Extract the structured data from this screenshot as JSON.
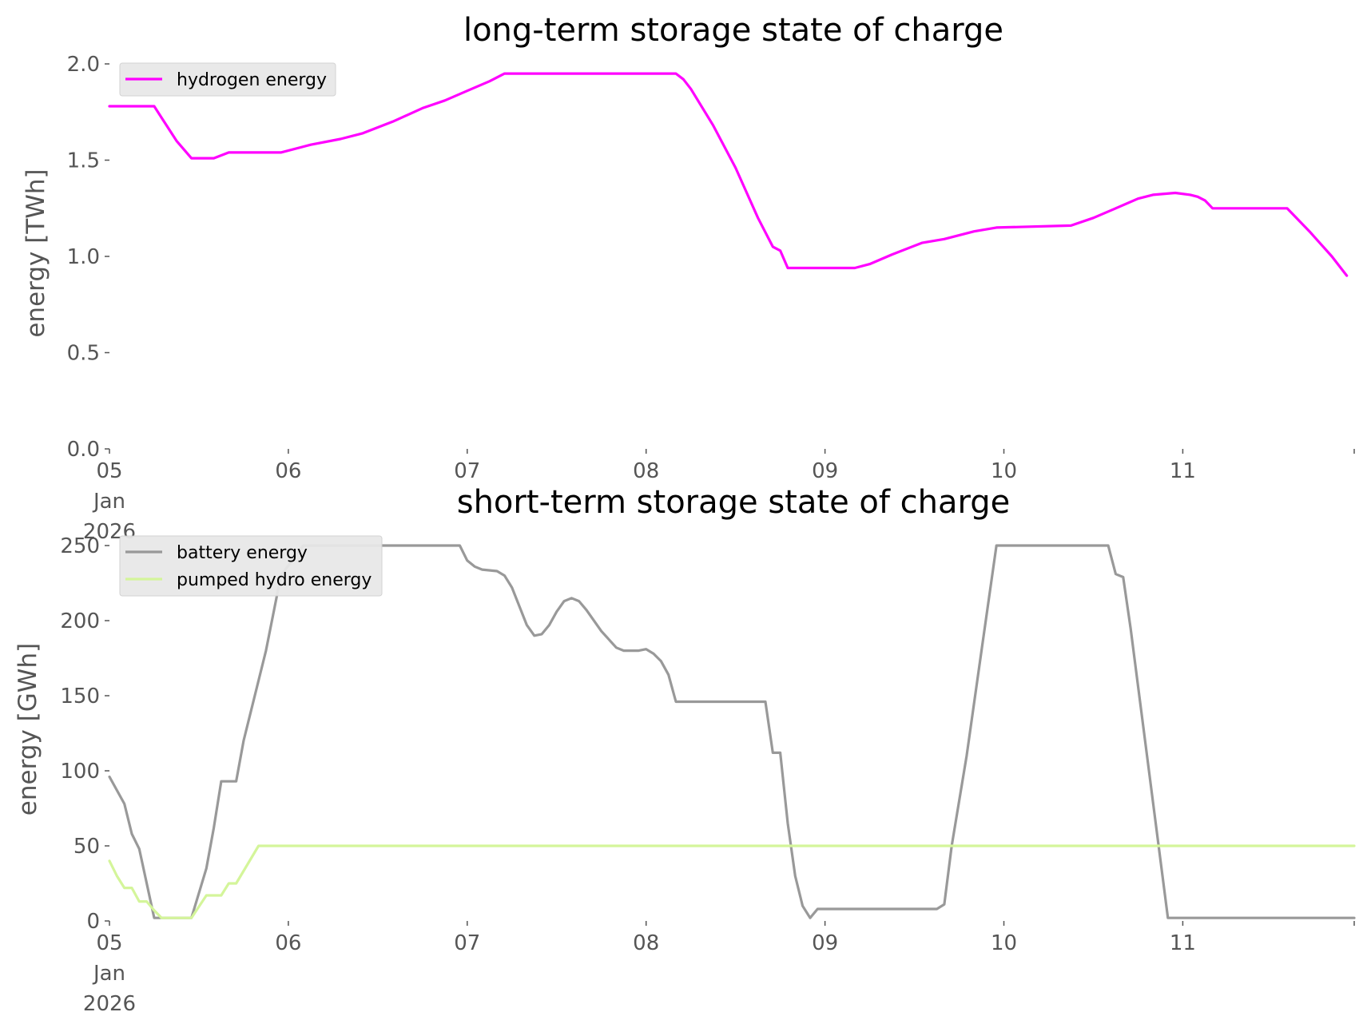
{
  "chart_data": [
    {
      "type": "line",
      "title": "long-term storage state of charge",
      "ylabel": "energy [TWh]",
      "xlabel": "",
      "xlim": [
        "2026-01-05T00:00",
        "2026-01-11T23:00"
      ],
      "ylim": [
        0.0,
        2.0
      ],
      "yticks": [
        "0.0",
        "0.5",
        "1.0",
        "1.5",
        "2.0"
      ],
      "yticks_values": [
        0.0,
        0.5,
        1.0,
        1.5,
        2.0
      ],
      "xticks": [
        {
          "value": "2026-01-05T00:00",
          "lines": [
            "05",
            "Jan",
            "2026"
          ]
        },
        {
          "value": "2026-01-06T00:00",
          "lines": [
            "06"
          ]
        },
        {
          "value": "2026-01-07T00:00",
          "lines": [
            "07"
          ]
        },
        {
          "value": "2026-01-08T00:00",
          "lines": [
            "08"
          ]
        },
        {
          "value": "2026-01-09T00:00",
          "lines": [
            "09"
          ]
        },
        {
          "value": "2026-01-10T00:00",
          "lines": [
            "10"
          ]
        },
        {
          "value": "2026-01-11T00:00",
          "lines": [
            "11"
          ]
        },
        {
          "value": "2026-01-11T23:00",
          "lines": []
        }
      ],
      "legend": "top-left",
      "grid": false,
      "series": [
        {
          "name": "hydrogen energy",
          "color": "#ff00ff",
          "points": [
            [
              "2026-01-05T00:00",
              1.78
            ],
            [
              "2026-01-05T06:00",
              1.78
            ],
            [
              "2026-01-05T07:00",
              1.72
            ],
            [
              "2026-01-05T09:00",
              1.6
            ],
            [
              "2026-01-05T11:00",
              1.51
            ],
            [
              "2026-01-05T14:00",
              1.51
            ],
            [
              "2026-01-05T16:00",
              1.54
            ],
            [
              "2026-01-05T23:00",
              1.54
            ],
            [
              "2026-01-06T03:00",
              1.58
            ],
            [
              "2026-01-06T07:00",
              1.61
            ],
            [
              "2026-01-06T10:00",
              1.64
            ],
            [
              "2026-01-06T14:00",
              1.7
            ],
            [
              "2026-01-06T18:00",
              1.77
            ],
            [
              "2026-01-06T21:00",
              1.81
            ],
            [
              "2026-01-07T00:00",
              1.86
            ],
            [
              "2026-01-07T03:00",
              1.91
            ],
            [
              "2026-01-07T05:00",
              1.95
            ],
            [
              "2026-01-08T04:00",
              1.95
            ],
            [
              "2026-01-08T05:00",
              1.92
            ],
            [
              "2026-01-08T06:00",
              1.87
            ],
            [
              "2026-01-08T09:00",
              1.68
            ],
            [
              "2026-01-08T12:00",
              1.46
            ],
            [
              "2026-01-08T15:00",
              1.2
            ],
            [
              "2026-01-08T17:00",
              1.05
            ],
            [
              "2026-01-08T18:00",
              1.03
            ],
            [
              "2026-01-08T19:00",
              0.94
            ],
            [
              "2026-01-09T04:00",
              0.94
            ],
            [
              "2026-01-09T06:00",
              0.96
            ],
            [
              "2026-01-09T09:00",
              1.01
            ],
            [
              "2026-01-09T13:00",
              1.07
            ],
            [
              "2026-01-09T16:00",
              1.09
            ],
            [
              "2026-01-09T20:00",
              1.13
            ],
            [
              "2026-01-09T23:00",
              1.15
            ],
            [
              "2026-01-10T09:00",
              1.16
            ],
            [
              "2026-01-10T12:00",
              1.2
            ],
            [
              "2026-01-10T15:00",
              1.25
            ],
            [
              "2026-01-10T18:00",
              1.3
            ],
            [
              "2026-01-10T20:00",
              1.32
            ],
            [
              "2026-01-10T23:00",
              1.33
            ],
            [
              "2026-01-11T01:00",
              1.32
            ],
            [
              "2026-01-11T02:00",
              1.31
            ],
            [
              "2026-01-11T03:00",
              1.29
            ],
            [
              "2026-01-11T04:00",
              1.25
            ],
            [
              "2026-01-11T14:00",
              1.25
            ],
            [
              "2026-01-11T17:00",
              1.13
            ],
            [
              "2026-01-11T20:00",
              1.0
            ],
            [
              "2026-01-11T22:00",
              0.9
            ]
          ]
        }
      ]
    },
    {
      "type": "line",
      "title": "short-term storage state of charge",
      "ylabel": "energy [GWh]",
      "xlabel": "",
      "xlim": [
        "2026-01-05T00:00",
        "2026-01-11T23:00"
      ],
      "ylim": [
        0,
        250
      ],
      "yticks": [
        "0",
        "50",
        "100",
        "150",
        "200",
        "250"
      ],
      "yticks_values": [
        0,
        50,
        100,
        150,
        200,
        250
      ],
      "xticks": [
        {
          "value": "2026-01-05T00:00",
          "lines": [
            "05",
            "Jan",
            "2026"
          ]
        },
        {
          "value": "2026-01-06T00:00",
          "lines": [
            "06"
          ]
        },
        {
          "value": "2026-01-07T00:00",
          "lines": [
            "07"
          ]
        },
        {
          "value": "2026-01-08T00:00",
          "lines": [
            "08"
          ]
        },
        {
          "value": "2026-01-09T00:00",
          "lines": [
            "09"
          ]
        },
        {
          "value": "2026-01-10T00:00",
          "lines": [
            "10"
          ]
        },
        {
          "value": "2026-01-11T00:00",
          "lines": [
            "11"
          ]
        },
        {
          "value": "2026-01-11T23:00",
          "lines": []
        }
      ],
      "legend": "top-left",
      "grid": false,
      "series": [
        {
          "name": "battery energy",
          "color": "#999999",
          "points": [
            [
              "2026-01-05T00:00",
              96
            ],
            [
              "2026-01-05T02:00",
              78
            ],
            [
              "2026-01-05T03:00",
              58
            ],
            [
              "2026-01-05T04:00",
              48
            ],
            [
              "2026-01-05T06:00",
              2
            ],
            [
              "2026-01-05T11:00",
              2
            ],
            [
              "2026-01-05T13:00",
              35
            ],
            [
              "2026-01-05T14:00",
              62
            ],
            [
              "2026-01-05T15:00",
              93
            ],
            [
              "2026-01-05T17:00",
              93
            ],
            [
              "2026-01-05T18:00",
              120
            ],
            [
              "2026-01-05T21:00",
              180
            ],
            [
              "2026-01-05T23:00",
              230
            ],
            [
              "2026-01-06T02:00",
              250
            ],
            [
              "2026-01-06T23:00",
              250
            ],
            [
              "2026-01-07T00:00",
              240
            ],
            [
              "2026-01-07T01:00",
              236
            ],
            [
              "2026-01-07T02:00",
              234
            ],
            [
              "2026-01-07T04:00",
              233
            ],
            [
              "2026-01-07T05:00",
              230
            ],
            [
              "2026-01-07T06:00",
              222
            ],
            [
              "2026-01-07T08:00",
              197
            ],
            [
              "2026-01-07T09:00",
              190
            ],
            [
              "2026-01-07T10:00",
              191
            ],
            [
              "2026-01-07T11:00",
              197
            ],
            [
              "2026-01-07T12:00",
              206
            ],
            [
              "2026-01-07T13:00",
              213
            ],
            [
              "2026-01-07T14:00",
              215
            ],
            [
              "2026-01-07T15:00",
              213
            ],
            [
              "2026-01-07T16:00",
              207
            ],
            [
              "2026-01-07T18:00",
              193
            ],
            [
              "2026-01-07T20:00",
              182
            ],
            [
              "2026-01-07T21:00",
              180
            ],
            [
              "2026-01-07T23:00",
              180
            ],
            [
              "2026-01-08T00:00",
              181
            ],
            [
              "2026-01-08T01:00",
              178
            ],
            [
              "2026-01-08T02:00",
              173
            ],
            [
              "2026-01-08T03:00",
              164
            ],
            [
              "2026-01-08T04:00",
              146
            ],
            [
              "2026-01-08T16:00",
              146
            ],
            [
              "2026-01-08T17:00",
              112
            ],
            [
              "2026-01-08T18:00",
              112
            ],
            [
              "2026-01-08T19:00",
              65
            ],
            [
              "2026-01-08T20:00",
              30
            ],
            [
              "2026-01-08T21:00",
              10
            ],
            [
              "2026-01-08T22:00",
              2
            ],
            [
              "2026-01-08T23:00",
              8
            ],
            [
              "2026-01-09T15:00",
              8
            ],
            [
              "2026-01-09T16:00",
              11
            ],
            [
              "2026-01-09T17:00",
              50
            ],
            [
              "2026-01-09T19:00",
              110
            ],
            [
              "2026-01-09T21:00",
              180
            ],
            [
              "2026-01-09T23:00",
              250
            ],
            [
              "2026-01-10T14:00",
              250
            ],
            [
              "2026-01-10T15:00",
              231
            ],
            [
              "2026-01-10T16:00",
              229
            ],
            [
              "2026-01-10T17:00",
              195
            ],
            [
              "2026-01-10T22:00",
              2
            ],
            [
              "2026-01-11T23:00",
              2
            ]
          ]
        },
        {
          "name": "pumped hydro energy",
          "color": "#d4f59a",
          "points": [
            [
              "2026-01-05T00:00",
              40
            ],
            [
              "2026-01-05T01:00",
              30
            ],
            [
              "2026-01-05T02:00",
              22
            ],
            [
              "2026-01-05T03:00",
              22
            ],
            [
              "2026-01-05T04:00",
              13
            ],
            [
              "2026-01-05T05:00",
              13
            ],
            [
              "2026-01-05T06:00",
              7
            ],
            [
              "2026-01-05T07:00",
              2
            ],
            [
              "2026-01-05T11:00",
              2
            ],
            [
              "2026-01-05T13:00",
              17
            ],
            [
              "2026-01-05T15:00",
              17
            ],
            [
              "2026-01-05T16:00",
              25
            ],
            [
              "2026-01-05T17:00",
              25
            ],
            [
              "2026-01-05T20:00",
              50
            ],
            [
              "2026-01-11T23:00",
              50
            ]
          ]
        }
      ]
    }
  ]
}
